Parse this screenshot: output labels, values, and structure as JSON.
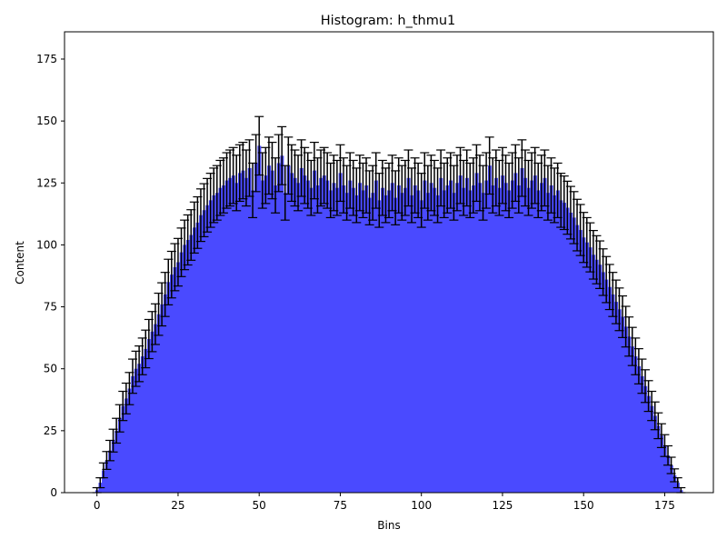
{
  "chart_data": {
    "type": "bar",
    "title": "Histogram: h_thmu1",
    "xlabel": "Bins",
    "ylabel": "Content",
    "xlim": [
      -10,
      190
    ],
    "ylim": [
      0,
      186
    ],
    "x_ticks": [
      0,
      25,
      50,
      75,
      100,
      125,
      150,
      175
    ],
    "y_ticks": [
      0,
      25,
      50,
      75,
      100,
      125,
      150,
      175
    ],
    "grid": false,
    "legend": "none",
    "bar_color": "#4a4aff",
    "errorbar_color": "#000000",
    "series": [
      {
        "x": [
          0,
          1,
          2,
          3,
          4,
          5,
          6,
          7,
          8,
          9,
          10,
          11,
          12,
          13,
          14,
          15,
          16,
          17,
          18,
          19,
          20,
          21,
          22,
          23,
          24,
          25,
          26,
          27,
          28,
          29,
          30,
          31,
          32,
          33,
          34,
          35,
          36,
          37,
          38,
          39,
          40,
          41,
          42,
          43,
          44,
          45,
          46,
          47,
          48,
          49,
          50,
          51,
          52,
          53,
          54,
          55,
          56,
          57,
          58,
          59,
          60,
          61,
          62,
          63,
          64,
          65,
          66,
          67,
          68,
          69,
          70,
          71,
          72,
          73,
          74,
          75,
          76,
          77,
          78,
          79,
          80,
          81,
          82,
          83,
          84,
          85,
          86,
          87,
          88,
          89,
          90,
          91,
          92,
          93,
          94,
          95,
          96,
          97,
          98,
          99,
          100,
          101,
          102,
          103,
          104,
          105,
          106,
          107,
          108,
          109,
          110,
          111,
          112,
          113,
          114,
          115,
          116,
          117,
          118,
          119,
          120,
          121,
          122,
          123,
          124,
          125,
          126,
          127,
          128,
          129,
          130,
          131,
          132,
          133,
          134,
          135,
          136,
          137,
          138,
          139,
          140,
          141,
          142,
          143,
          144,
          145,
          146,
          147,
          148,
          149,
          150,
          151,
          152,
          153,
          154,
          155,
          156,
          157,
          158,
          159,
          160,
          161,
          162,
          163,
          164,
          165,
          166,
          167,
          168,
          169,
          170,
          171,
          172,
          173,
          174,
          175,
          176,
          177,
          178,
          179,
          180
        ],
        "values": [
          1,
          4,
          9,
          13,
          17,
          21,
          25,
          30,
          35,
          38,
          42,
          47,
          50,
          52,
          55,
          58,
          62,
          65,
          68,
          72,
          76,
          80,
          85,
          88,
          91,
          93,
          97,
          100,
          102,
          104,
          107,
          109,
          112,
          114,
          116,
          118,
          120,
          121,
          123,
          124,
          126,
          127,
          128,
          125,
          129,
          130,
          127,
          131,
          122,
          133,
          140,
          126,
          128,
          132,
          130,
          124,
          133,
          136,
          121,
          132,
          129,
          127,
          125,
          131,
          128,
          126,
          123,
          130,
          124,
          127,
          128,
          126,
          122,
          125,
          123,
          129,
          124,
          121,
          126,
          123,
          120,
          125,
          122,
          124,
          119,
          121,
          126,
          118,
          123,
          120,
          122,
          125,
          119,
          124,
          121,
          123,
          127,
          120,
          124,
          122,
          118,
          126,
          121,
          125,
          123,
          120,
          127,
          122,
          124,
          126,
          121,
          125,
          128,
          123,
          127,
          122,
          124,
          129,
          125,
          121,
          126,
          132,
          124,
          127,
          123,
          128,
          125,
          122,
          126,
          129,
          124,
          131,
          127,
          123,
          126,
          128,
          122,
          125,
          127,
          121,
          124,
          120,
          122,
          118,
          117,
          115,
          113,
          111,
          108,
          106,
          103,
          101,
          99,
          96,
          94,
          92,
          89,
          86,
          83,
          80,
          77,
          74,
          71,
          67,
          63,
          59,
          55,
          51,
          47,
          43,
          39,
          35,
          31,
          27,
          23,
          19,
          15,
          11,
          7,
          4,
          1
        ],
        "errors": [
          1,
          2,
          3,
          3.6,
          4.1,
          4.6,
          5,
          5.5,
          5.9,
          6.2,
          6.5,
          6.9,
          7.1,
          7.2,
          7.4,
          7.6,
          7.9,
          8.1,
          8.2,
          8.5,
          8.7,
          8.9,
          9.2,
          9.4,
          9.5,
          9.6,
          9.8,
          10,
          10.1,
          10.2,
          10.3,
          10.4,
          10.6,
          10.7,
          10.8,
          10.9,
          11,
          11,
          11.1,
          11.1,
          11.2,
          11.3,
          11.3,
          11.2,
          11.4,
          11.4,
          11.3,
          11.4,
          11,
          11.5,
          11.8,
          11.2,
          11.3,
          11.5,
          11.4,
          11.1,
          11.5,
          11.7,
          11,
          11.5,
          11.4,
          11.3,
          11.2,
          11.4,
          11.3,
          11.2,
          11.1,
          11.4,
          11.1,
          11.3,
          11.3,
          11.2,
          11,
          11.2,
          11.1,
          11.4,
          11.1,
          11,
          11.2,
          11.1,
          11,
          11.2,
          11,
          11.1,
          10.9,
          11,
          11.2,
          10.9,
          11.1,
          11,
          11,
          11.2,
          10.9,
          11.1,
          11,
          11.1,
          11.3,
          11,
          11.1,
          11,
          10.9,
          11.2,
          11,
          11.2,
          11.1,
          11,
          11.3,
          11,
          11.1,
          11.2,
          11,
          11.2,
          11.3,
          11.1,
          11.3,
          11,
          11.1,
          11.4,
          11.2,
          11,
          11.2,
          11.5,
          11.1,
          11.3,
          11.1,
          11.3,
          11.2,
          11,
          11.2,
          11.4,
          11.1,
          11.4,
          11.3,
          11.1,
          11.2,
          11.3,
          11,
          11.2,
          11.3,
          11,
          11.1,
          11,
          11,
          10.9,
          10.8,
          10.7,
          10.6,
          10.5,
          10.4,
          10.3,
          10.1,
          10,
          9.9,
          9.8,
          9.7,
          9.6,
          9.4,
          9.3,
          9.1,
          8.9,
          8.8,
          8.6,
          8.4,
          8.2,
          7.9,
          7.7,
          7.4,
          7.1,
          6.9,
          6.6,
          6.2,
          5.9,
          5.6,
          5.2,
          4.8,
          4.4,
          3.9,
          3.3,
          2.6,
          2,
          1
        ]
      }
    ]
  }
}
